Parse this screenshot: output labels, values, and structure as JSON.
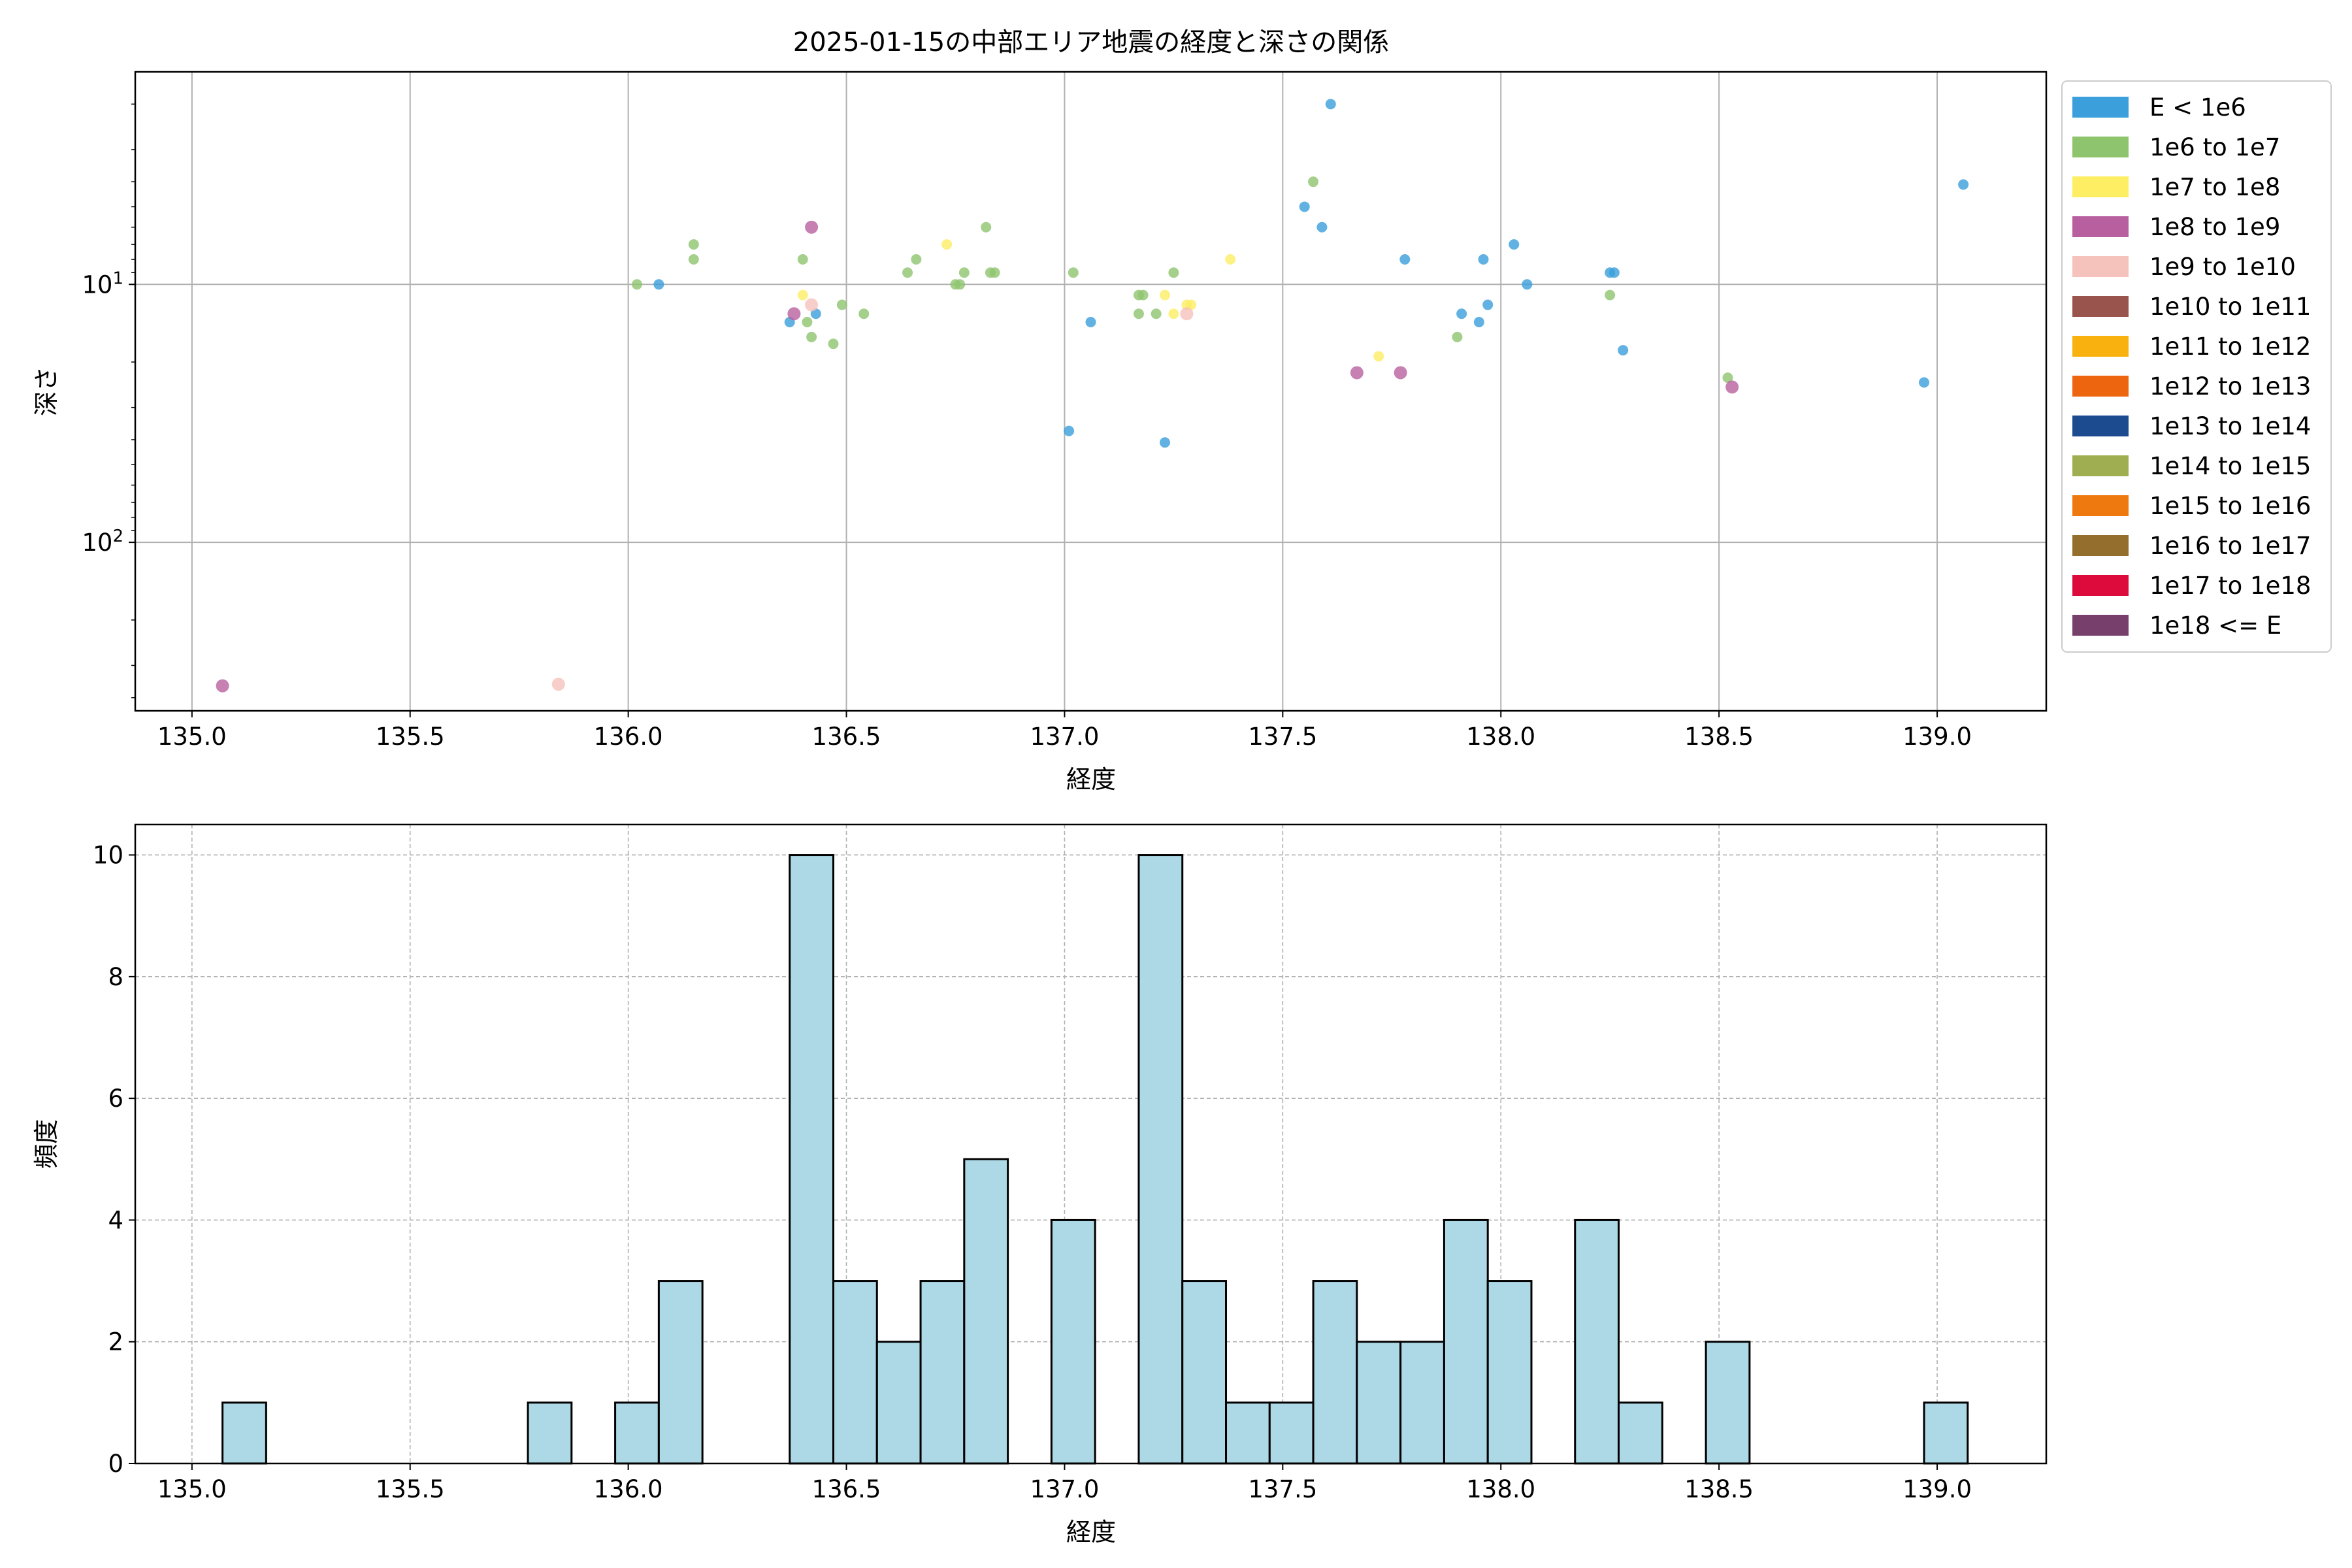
{
  "chart_data": [
    {
      "type": "scatter",
      "title": "2025-01-15の中部エリア地震の経度と深さの関係",
      "xlabel": "経度",
      "ylabel": "深さ",
      "xlim": [
        134.87,
        139.25
      ],
      "ylim": [
        450,
        1.5
      ],
      "y_scale": "log",
      "y_inverted": true,
      "grid": true,
      "x_ticks": [
        {
          "value": 135.0,
          "label": "135.0"
        },
        {
          "value": 135.5,
          "label": "135.5"
        },
        {
          "value": 136.0,
          "label": "136.0"
        },
        {
          "value": 136.5,
          "label": "136.5"
        },
        {
          "value": 137.0,
          "label": "137.0"
        },
        {
          "value": 137.5,
          "label": "137.5"
        },
        {
          "value": 138.0,
          "label": "138.0"
        },
        {
          "value": 138.5,
          "label": "138.5"
        },
        {
          "value": 139.0,
          "label": "139.0"
        }
      ],
      "y_ticks": [
        {
          "value": 10,
          "base": "10",
          "exp": "1"
        },
        {
          "value": 100,
          "base": "10",
          "exp": "2"
        }
      ],
      "legend_position": "outside-right",
      "legend": [
        {
          "label": "E < 1e6",
          "color": "#3a9fdb"
        },
        {
          "label": "1e6 to 1e7",
          "color": "#8ec46e"
        },
        {
          "label": "1e7 to 1e8",
          "color": "#fdee64"
        },
        {
          "label": "1e8 to 1e9",
          "color": "#b8609f"
        },
        {
          "label": "1e9 to 1e10",
          "color": "#f5c2bc"
        },
        {
          "label": "1e10 to 1e11",
          "color": "#99544d"
        },
        {
          "label": "1e11 to 1e12",
          "color": "#f8b10f"
        },
        {
          "label": "1e12 to 1e13",
          "color": "#ee650f"
        },
        {
          "label": "1e13 to 1e14",
          "color": "#1c4b90"
        },
        {
          "label": "1e14 to 1e15",
          "color": "#9fae50"
        },
        {
          "label": "1e15 to 1e16",
          "color": "#ed790f"
        },
        {
          "label": "1e16 to 1e17",
          "color": "#946e2c"
        },
        {
          "label": "1e17 to 1e18",
          "color": "#dd0a3c"
        },
        {
          "label": "1e18 <= E",
          "color": "#763f6c"
        }
      ],
      "series": [
        {
          "legend_index": 0,
          "points": [
            {
              "x": 137.61,
              "y": 2.0
            },
            {
              "x": 139.06,
              "y": 4.1
            },
            {
              "x": 137.55,
              "y": 5.0
            },
            {
              "x": 137.59,
              "y": 6.0
            },
            {
              "x": 138.03,
              "y": 7.0
            },
            {
              "x": 137.78,
              "y": 8.0
            },
            {
              "x": 137.96,
              "y": 8.0
            },
            {
              "x": 138.26,
              "y": 9.0
            },
            {
              "x": 138.25,
              "y": 9.0
            },
            {
              "x": 136.07,
              "y": 10.0
            },
            {
              "x": 138.06,
              "y": 10.0
            },
            {
              "x": 137.97,
              "y": 12.0
            },
            {
              "x": 137.91,
              "y": 13.0
            },
            {
              "x": 136.43,
              "y": 13.0
            },
            {
              "x": 136.37,
              "y": 14.0
            },
            {
              "x": 137.06,
              "y": 14.0
            },
            {
              "x": 137.95,
              "y": 14.0
            },
            {
              "x": 138.28,
              "y": 18.0
            },
            {
              "x": 138.97,
              "y": 24.0
            },
            {
              "x": 137.01,
              "y": 37.0
            },
            {
              "x": 137.23,
              "y": 41.0
            }
          ]
        },
        {
          "legend_index": 1,
          "points": [
            {
              "x": 137.57,
              "y": 4.0
            },
            {
              "x": 136.82,
              "y": 6.0
            },
            {
              "x": 136.15,
              "y": 7.0
            },
            {
              "x": 136.15,
              "y": 8.0
            },
            {
              "x": 136.4,
              "y": 8.0
            },
            {
              "x": 136.66,
              "y": 8.0
            },
            {
              "x": 136.64,
              "y": 9.0
            },
            {
              "x": 136.77,
              "y": 9.0
            },
            {
              "x": 136.83,
              "y": 9.0
            },
            {
              "x": 136.84,
              "y": 9.0
            },
            {
              "x": 137.02,
              "y": 9.0
            },
            {
              "x": 137.25,
              "y": 9.0
            },
            {
              "x": 136.02,
              "y": 10.0
            },
            {
              "x": 136.75,
              "y": 10.0
            },
            {
              "x": 136.76,
              "y": 10.0
            },
            {
              "x": 137.17,
              "y": 11.0
            },
            {
              "x": 137.18,
              "y": 11.0
            },
            {
              "x": 138.25,
              "y": 11.0
            },
            {
              "x": 136.49,
              "y": 12.0
            },
            {
              "x": 136.54,
              "y": 13.0
            },
            {
              "x": 137.17,
              "y": 13.0
            },
            {
              "x": 137.21,
              "y": 13.0
            },
            {
              "x": 136.41,
              "y": 14.0
            },
            {
              "x": 136.42,
              "y": 16.0
            },
            {
              "x": 137.9,
              "y": 16.0
            },
            {
              "x": 136.47,
              "y": 17.0
            },
            {
              "x": 138.52,
              "y": 23.0
            }
          ]
        },
        {
          "legend_index": 2,
          "points": [
            {
              "x": 136.73,
              "y": 7.0
            },
            {
              "x": 137.38,
              "y": 8.0
            },
            {
              "x": 136.4,
              "y": 11.0
            },
            {
              "x": 137.23,
              "y": 11.0
            },
            {
              "x": 137.29,
              "y": 12.0
            },
            {
              "x": 137.28,
              "y": 12.0
            },
            {
              "x": 137.25,
              "y": 13.0
            },
            {
              "x": 137.72,
              "y": 19.0
            }
          ]
        },
        {
          "legend_index": 3,
          "points": [
            {
              "x": 136.42,
              "y": 6.0
            },
            {
              "x": 136.38,
              "y": 13.0
            },
            {
              "x": 137.67,
              "y": 22.0
            },
            {
              "x": 137.77,
              "y": 22.0
            },
            {
              "x": 138.53,
              "y": 25.0
            },
            {
              "x": 135.07,
              "y": 360.0
            }
          ]
        },
        {
          "legend_index": 4,
          "points": [
            {
              "x": 136.42,
              "y": 12.0
            },
            {
              "x": 137.28,
              "y": 13.0
            },
            {
              "x": 135.84,
              "y": 355.0
            }
          ]
        }
      ]
    },
    {
      "type": "bar",
      "subtype": "histogram",
      "xlabel": "経度",
      "ylabel": "頻度",
      "xlim": [
        134.87,
        139.25
      ],
      "ylim": [
        0,
        10.5
      ],
      "grid": true,
      "bar_color": "#add8e6",
      "edge_color": "#000000",
      "x_ticks": [
        {
          "value": 135.0,
          "label": "135.0"
        },
        {
          "value": 135.5,
          "label": "135.5"
        },
        {
          "value": 136.0,
          "label": "136.0"
        },
        {
          "value": 136.5,
          "label": "136.5"
        },
        {
          "value": 137.0,
          "label": "137.0"
        },
        {
          "value": 137.5,
          "label": "137.5"
        },
        {
          "value": 138.0,
          "label": "138.0"
        },
        {
          "value": 138.5,
          "label": "138.5"
        },
        {
          "value": 139.0,
          "label": "139.0"
        }
      ],
      "y_ticks": [
        {
          "value": 0,
          "label": "0"
        },
        {
          "value": 2,
          "label": "2"
        },
        {
          "value": 4,
          "label": "4"
        },
        {
          "value": 6,
          "label": "6"
        },
        {
          "value": 8,
          "label": "8"
        },
        {
          "value": 10,
          "label": "10"
        }
      ],
      "bin_start": 135.07,
      "bin_width": 0.1,
      "values": [
        1,
        0,
        0,
        0,
        0,
        0,
        0,
        1,
        0,
        1,
        3,
        0,
        0,
        10,
        3,
        2,
        3,
        5,
        0,
        4,
        0,
        10,
        3,
        1,
        1,
        3,
        2,
        2,
        4,
        3,
        0,
        4,
        1,
        0,
        2,
        0,
        0,
        0,
        0,
        1
      ]
    }
  ]
}
